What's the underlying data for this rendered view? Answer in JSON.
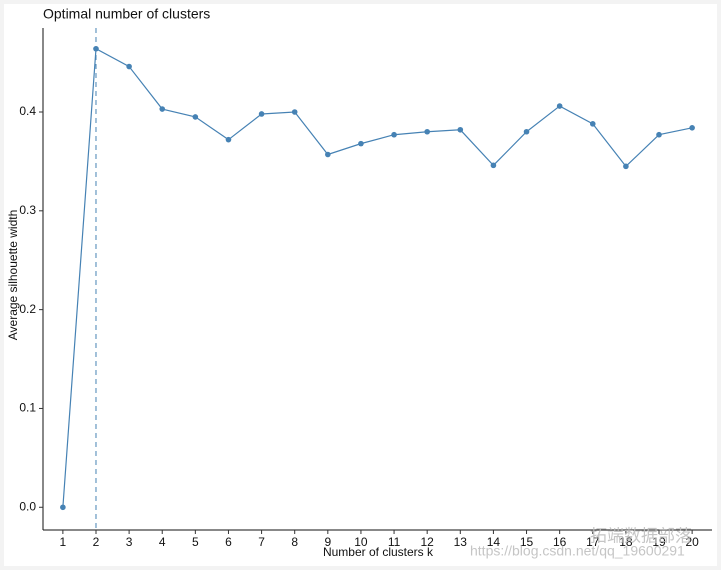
{
  "chart_data": {
    "type": "line",
    "title": "Optimal number of clusters",
    "xlabel": "Number of clusters k",
    "ylabel": "Average silhouette width",
    "x": [
      1,
      2,
      3,
      4,
      5,
      6,
      7,
      8,
      9,
      10,
      11,
      12,
      13,
      14,
      15,
      16,
      17,
      18,
      19,
      20
    ],
    "values": [
      0,
      0.464,
      0.446,
      0.403,
      0.395,
      0.372,
      0.398,
      0.4,
      0.357,
      0.368,
      0.377,
      0.38,
      0.382,
      0.346,
      0.38,
      0.406,
      0.388,
      0.345,
      0.377,
      0.384
    ],
    "color": "#4682b4",
    "xlim": [
      0.4,
      20.6
    ],
    "ylim": [
      -0.023,
      0.485
    ],
    "xticks": [
      1,
      2,
      3,
      4,
      5,
      6,
      7,
      8,
      9,
      10,
      11,
      12,
      13,
      14,
      15,
      16,
      17,
      18,
      19,
      20
    ],
    "yticks": [
      {
        "value": 0,
        "label": "0.0"
      },
      0.1,
      0.2,
      0.3,
      0.4
    ],
    "vline_x": 2,
    "watermark": [
      "拓端数据部落",
      "https://blog.csdn.net/qq_19600291"
    ]
  }
}
